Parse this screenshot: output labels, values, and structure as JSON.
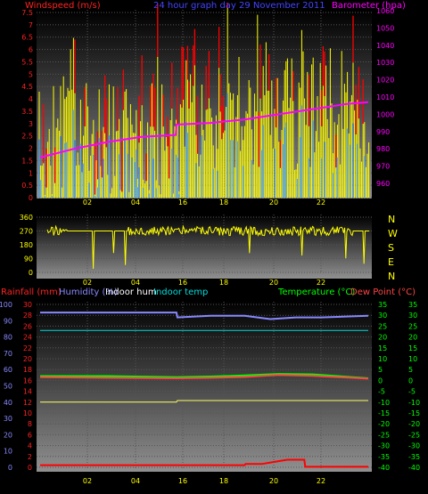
{
  "header": {
    "windspeed_label": "Windspeed (m/s)",
    "title": "24 hour graph day   29 November 2011",
    "barometer_label": "Barometer (hpa)"
  },
  "wind_dir_labels": [
    "N",
    "W",
    "S",
    "E",
    "N"
  ],
  "bottom_header": {
    "rainfall": "Rainfall (mm)",
    "humidity": "Humidity (%)",
    "indoor_hum": "Indoor hum",
    "indoor_temp": "Indoor temp",
    "temperature": "Temperature (°C)",
    "dew_point": "Dew Point (°C)"
  },
  "colors": {
    "wind": "#ffff00",
    "gust": "#ff0000",
    "wind_avg": "#44aaff",
    "barometer": "#ff00ff",
    "rainfall": "#ff0000",
    "humidity": "#8888ff",
    "indoor_hum": "#ffff66",
    "indoor_temp": "#00dddd",
    "temperature": "#00ff00",
    "dew_point": "#ff4444",
    "background_top": "#000000",
    "background_bottom": "#888888",
    "grid": "#555555"
  },
  "chart_data": [
    {
      "type": "line",
      "name": "wind",
      "x_ticks": [
        "02",
        "04",
        "16",
        "18",
        "20",
        "22"
      ],
      "y_left_ticks": [
        "0",
        "0.5",
        "1",
        "1.5",
        "2",
        "2.5",
        "3",
        "3.5",
        "4",
        "4.5",
        "5",
        "5.5",
        "6",
        "6.5",
        "7",
        "7.5"
      ],
      "y_right_ticks": [
        "960",
        "970",
        "980",
        "990",
        "1000",
        "1010",
        "1020",
        "1030",
        "1040",
        "1050",
        "1060"
      ],
      "ylim_left": [
        0,
        8
      ],
      "ylim_right": [
        955,
        1060
      ],
      "barometer_points": [
        [
          0,
          975
        ],
        [
          4,
          980
        ],
        [
          8,
          984
        ],
        [
          12,
          987
        ],
        [
          15.9,
          988
        ],
        [
          16,
          994
        ],
        [
          20,
          995
        ],
        [
          24,
          997
        ],
        [
          28,
          1000
        ],
        [
          32,
          1003
        ],
        [
          36,
          1006
        ],
        [
          38.5,
          1007
        ]
      ]
    },
    {
      "type": "line",
      "name": "wind_direction",
      "y_ticks": [
        "360",
        "270",
        "180",
        "90",
        "0"
      ],
      "ylim": [
        0,
        360
      ],
      "x_ticks": [
        "02",
        "04",
        "16",
        "18",
        "20",
        "22"
      ]
    },
    {
      "type": "line",
      "name": "climate",
      "x_ticks": [
        "02",
        "04",
        "16",
        "18",
        "20",
        "22"
      ],
      "rain_ticks": [
        "0",
        "2",
        "4",
        "6",
        "8",
        "10",
        "12",
        "14",
        "16",
        "18",
        "20",
        "22",
        "24",
        "26",
        "28",
        "30"
      ],
      "hum_ticks": [
        "0",
        "10",
        "20",
        "30",
        "40",
        "50",
        "60",
        "70",
        "80",
        "90",
        "100"
      ],
      "temp_ticks": [
        "-40",
        "-35",
        "-30",
        "-25",
        "-20",
        "-15",
        "-10",
        "-5",
        "0",
        "5",
        "10",
        "15",
        "20",
        "25",
        "30",
        "35"
      ],
      "series": [
        {
          "name": "Humidity (%)",
          "key": "humidity",
          "points": [
            [
              0,
              95
            ],
            [
              8,
              95
            ],
            [
              16,
              95
            ],
            [
              16.1,
              92
            ],
            [
              20,
              93
            ],
            [
              24,
              93
            ],
            [
              27,
              91
            ],
            [
              30,
              92
            ],
            [
              33,
              92
            ],
            [
              38.5,
              93
            ]
          ]
        },
        {
          "name": "Indoor temp",
          "key": "indoor_temp",
          "points": [
            [
              0,
              84
            ],
            [
              38.5,
              84
            ]
          ]
        },
        {
          "name": "Temperature (°C)",
          "key": "temperature",
          "points": [
            [
              0,
              2
            ],
            [
              8,
              2
            ],
            [
              16,
              1.5
            ],
            [
              20,
              1.8
            ],
            [
              24,
              2.3
            ],
            [
              28,
              3
            ],
            [
              32,
              2.8
            ],
            [
              38.5,
              1
            ]
          ]
        },
        {
          "name": "Dew Point (°C)",
          "key": "dew_point",
          "points": [
            [
              0,
              1.5
            ],
            [
              8,
              1.2
            ],
            [
              16,
              1
            ],
            [
              20,
              1.2
            ],
            [
              24,
              1.6
            ],
            [
              28,
              2.5
            ],
            [
              32,
              2.1
            ],
            [
              38.5,
              0.8
            ]
          ]
        },
        {
          "name": "Indoor hum",
          "key": "indoor_hum",
          "points": [
            [
              0,
              40
            ],
            [
              16,
              40
            ],
            [
              16.1,
              41
            ],
            [
              38.5,
              41
            ]
          ]
        },
        {
          "name": "Rainfall (mm)",
          "key": "rainfall",
          "points": [
            [
              0,
              0.4
            ],
            [
              24,
              0.4
            ],
            [
              24.1,
              0.6
            ],
            [
              26,
              0.6
            ],
            [
              27.5,
              1.0
            ],
            [
              29,
              1.4
            ],
            [
              31,
              1.4
            ],
            [
              31.1,
              0.1
            ],
            [
              38.5,
              0.1
            ]
          ]
        }
      ]
    }
  ]
}
